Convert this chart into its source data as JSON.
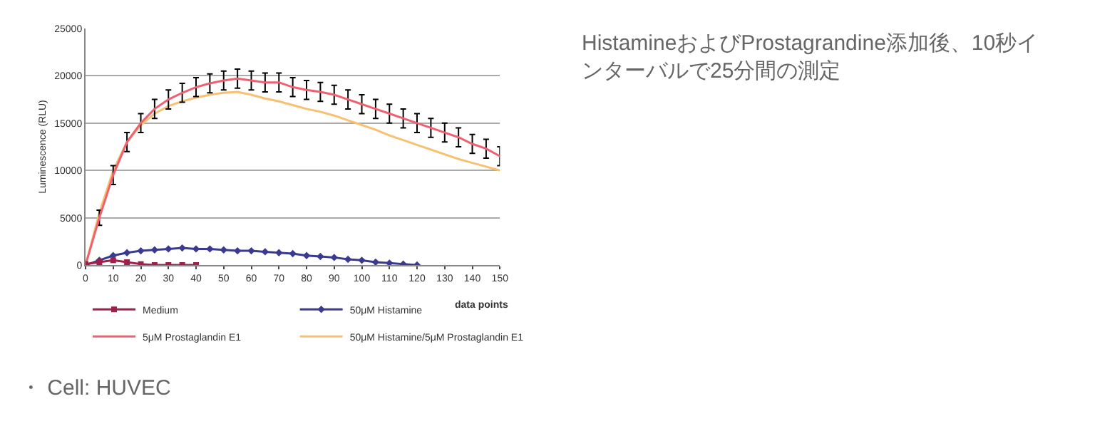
{
  "chart_data": {
    "type": "line",
    "ylabel": "Luminescence (RLU)",
    "xlabel": "data points",
    "x": [
      0,
      5,
      10,
      15,
      20,
      25,
      30,
      35,
      40,
      45,
      50,
      55,
      60,
      65,
      70,
      75,
      80,
      85,
      90,
      95,
      100,
      105,
      110,
      115,
      120,
      125,
      130,
      135,
      140,
      145,
      150
    ],
    "xlim": [
      0,
      150
    ],
    "xticks": [
      0,
      10,
      20,
      30,
      40,
      50,
      60,
      70,
      80,
      90,
      100,
      110,
      120,
      130,
      140,
      150
    ],
    "ylim": [
      0,
      25000
    ],
    "yticks": [
      0,
      5000,
      10000,
      15000,
      20000,
      25000
    ],
    "grid": "y",
    "legend": "bottom",
    "series": [
      {
        "name": "Medium",
        "color": "#a0204a",
        "marker": "square",
        "values": [
          100,
          300,
          500,
          300,
          100,
          0,
          0,
          0,
          0,
          null,
          null,
          null,
          null,
          null,
          null,
          null,
          null,
          null,
          null,
          null,
          null,
          null,
          null,
          null,
          null,
          null,
          null,
          null,
          null,
          null,
          null
        ]
      },
      {
        "name": "50μM Histamine",
        "color": "#3a3a90",
        "marker": "diamond",
        "values": [
          0,
          500,
          1000,
          1300,
          1500,
          1600,
          1700,
          1800,
          1700,
          1700,
          1600,
          1500,
          1500,
          1400,
          1300,
          1200,
          1000,
          900,
          800,
          600,
          500,
          300,
          200,
          100,
          0,
          null,
          null,
          null,
          null,
          null,
          null
        ]
      },
      {
        "name": "5μM Prostaglandin E1",
        "color": "#f06070",
        "marker": "none",
        "errors": [
          null,
          800,
          1000,
          1000,
          1000,
          1000,
          1000,
          1000,
          1000,
          1000,
          1000,
          1000,
          1000,
          1000,
          1000,
          1000,
          1000,
          1000,
          1000,
          1000,
          1000,
          1000,
          1000,
          1000,
          1000,
          1000,
          1000,
          1000,
          1000,
          1000,
          1000
        ],
        "values": [
          0,
          5000,
          9500,
          13000,
          15000,
          16500,
          17500,
          18200,
          18800,
          19200,
          19500,
          19700,
          19500,
          19300,
          19300,
          18800,
          18500,
          18300,
          18000,
          17500,
          17000,
          16500,
          16000,
          15500,
          15000,
          14500,
          14000,
          13500,
          12800,
          12300,
          11500
        ]
      },
      {
        "name": "50μM Histamine/5μM Prostaglandin E1",
        "color": "#f8c070",
        "marker": "none",
        "values": [
          0,
          5500,
          10000,
          13000,
          14800,
          16000,
          16800,
          17300,
          17700,
          18000,
          18200,
          18300,
          18000,
          17600,
          17300,
          16900,
          16500,
          16200,
          15800,
          15300,
          14800,
          14300,
          13700,
          13200,
          12700,
          12200,
          11700,
          11200,
          10800,
          10400,
          10000
        ]
      }
    ],
    "annotations": [
      "HistamineおよびProstagrandine添加後、10秒インターバルで25分間の測定",
      "・ Cell: HUVEC"
    ]
  }
}
